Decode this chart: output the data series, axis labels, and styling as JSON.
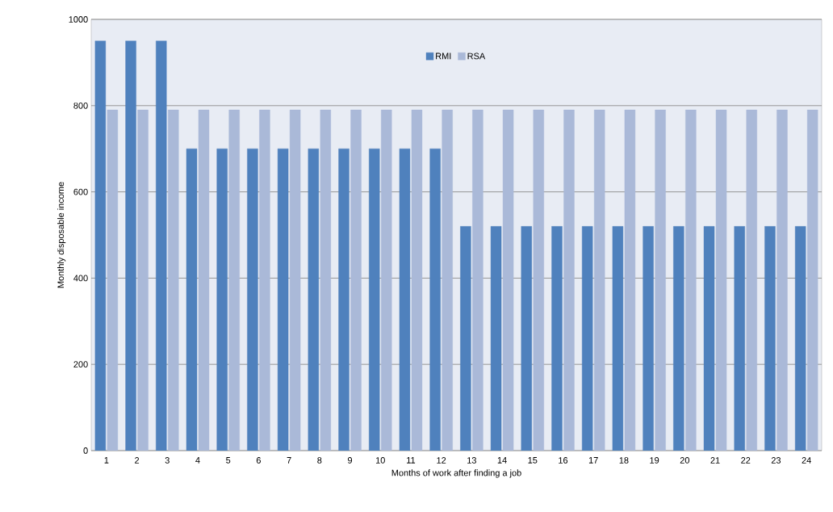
{
  "chart_data": {
    "type": "bar",
    "xlabel": "Months of work after finding a job",
    "ylabel": "Monthly disposable income",
    "categories": [
      "1",
      "2",
      "3",
      "4",
      "5",
      "6",
      "7",
      "8",
      "9",
      "10",
      "11",
      "12",
      "13",
      "14",
      "15",
      "16",
      "17",
      "18",
      "19",
      "20",
      "21",
      "22",
      "23",
      "24"
    ],
    "series": [
      {
        "name": "RMI",
        "color": "#4f81bd",
        "values": [
          950,
          950,
          950,
          700,
          700,
          700,
          700,
          700,
          700,
          700,
          700,
          700,
          520,
          520,
          520,
          520,
          520,
          520,
          520,
          520,
          520,
          520,
          520,
          520
        ]
      },
      {
        "name": "RSA",
        "color": "#aab9d8",
        "values": [
          790,
          790,
          790,
          790,
          790,
          790,
          790,
          790,
          790,
          790,
          790,
          790,
          790,
          790,
          790,
          790,
          790,
          790,
          790,
          790,
          790,
          790,
          790,
          790
        ]
      }
    ],
    "ylim": [
      0,
      1000
    ],
    "yticks": [
      0,
      200,
      400,
      600,
      800,
      1000
    ],
    "grid": "y",
    "legend": "top"
  }
}
